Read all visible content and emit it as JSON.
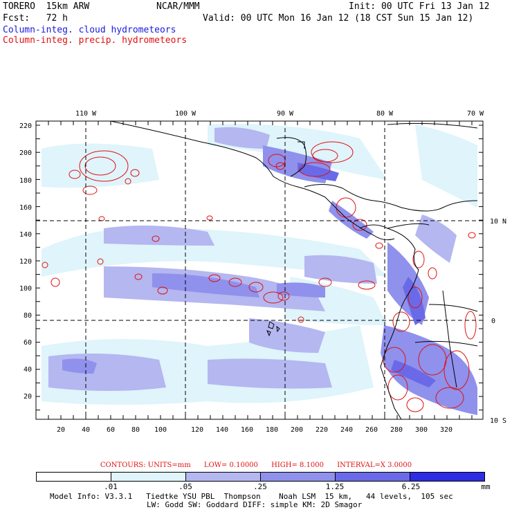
{
  "header": {
    "model": "TORERO  15km ARW",
    "org": "NCAR/MMM",
    "init": "Init: 00 UTC Fri 13 Jan 12",
    "fcst": "Fcst:   72 h",
    "valid": "Valid: 00 UTC Mon 16 Jan 12 (18 CST Sun 15 Jan 12)",
    "field_blue": "Column-integ. cloud hydrometeors",
    "field_red": "Column-integ. precip. hydrometeors"
  },
  "map": {
    "lon_labels": [
      "110 W",
      "100 W",
      "90 W",
      "80 W",
      "70 W"
    ],
    "lat_labels": [
      "10 N",
      "0",
      "10 S"
    ],
    "y_ticks": [
      "220",
      "200",
      "180",
      "160",
      "140",
      "120",
      "100",
      "80",
      "60",
      "40",
      "20"
    ],
    "x_ticks": [
      "20",
      "40",
      "60",
      "80",
      "100",
      "120",
      "140",
      "160",
      "180",
      "200",
      "220",
      "240",
      "260",
      "280",
      "300",
      "320"
    ],
    "colors": {
      "fill1": "#dff4fb",
      "fill2": "#b4b7f0",
      "fill3": "#8f91ec",
      "fill4": "#6a6ae8",
      "fill5": "#2d2de3",
      "contour": "#e01010"
    }
  },
  "contours": {
    "units": "CONTOURS:  UNITS=mm",
    "low": "LOW= 0.10000",
    "high": "HIGH=  8.1000",
    "interval": "INTERVAL=X  3.0000"
  },
  "colorbar": {
    "labels": [
      ".01",
      ".05",
      ".25",
      "1.25",
      "6.25"
    ],
    "unit": "mm",
    "colors": [
      "#ffffff",
      "#dff4fb",
      "#b4b7f0",
      "#8f91ec",
      "#6a6ae8",
      "#2d2de3"
    ]
  },
  "footer": {
    "line1": "Model Info: V3.3.1   Tiedtke YSU PBL  Thompson    Noah LSM  15 km,   44 levels,  105 sec",
    "line2": "LW: Godd SW: Goddard DIFF: simple KM: 2D Smagor"
  }
}
